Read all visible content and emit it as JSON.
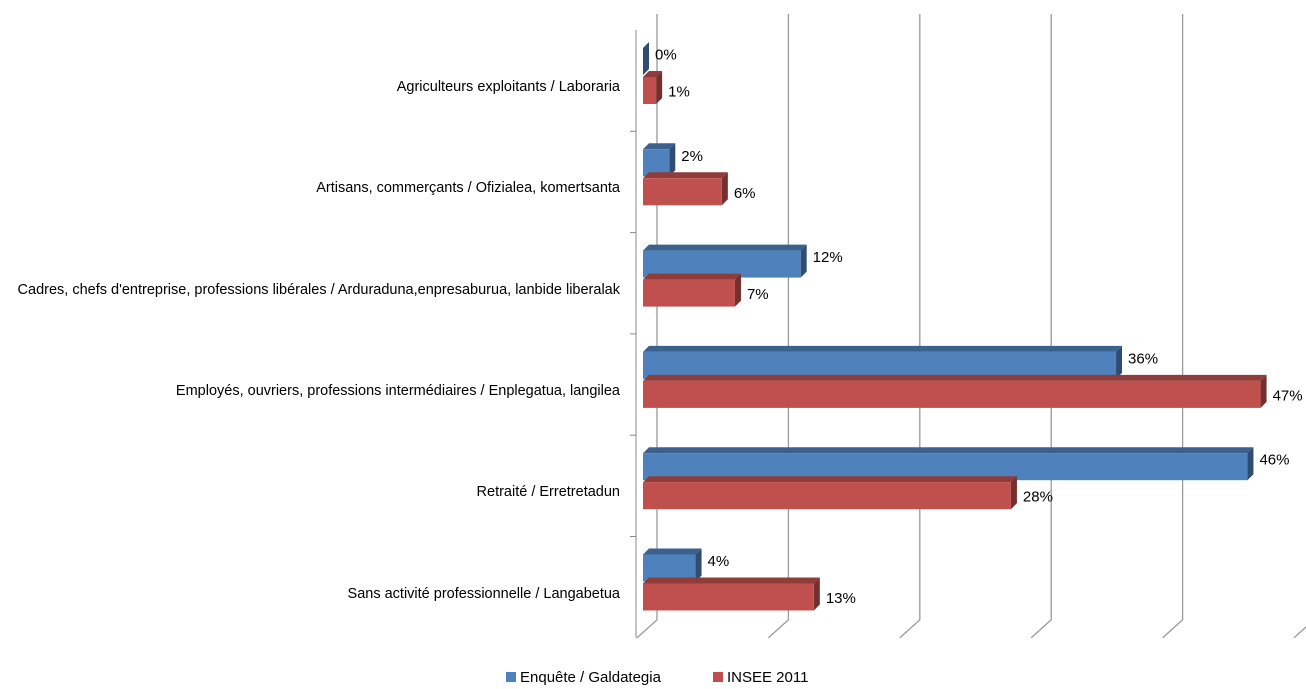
{
  "chart_data": {
    "type": "bar3d_horizontal",
    "categories": [
      "Agriculteurs exploitants / Laboraria",
      "Artisans, commerçants / Ofizialea, komertsanta",
      "Cadres, chefs d'entreprise, professions libérales / Arduraduna,enpresaburua, lanbide liberalak",
      "Employés, ouvriers, professions intermédiaires / Enplegatua, langilea",
      "Retraité / Erretretadun",
      "Sans activité professionnelle / Langabetua"
    ],
    "series": [
      {
        "name": "Enquête / Galdategia",
        "color": "#4f81bd",
        "values": [
          0,
          2,
          12,
          36,
          46,
          4
        ],
        "value_labels": [
          "0%",
          "2%",
          "12%",
          "36%",
          "46%",
          "4%"
        ]
      },
      {
        "name": "INSEE 2011",
        "color": "#c0504d",
        "values": [
          1,
          6,
          7,
          47,
          28,
          13
        ],
        "value_labels": [
          "1%",
          "6%",
          "7%",
          "47%",
          "28%",
          "13%"
        ]
      }
    ],
    "xlim": [
      0,
      50
    ],
    "xticks": [
      0,
      10,
      20,
      30,
      40,
      50
    ],
    "grid": true
  }
}
